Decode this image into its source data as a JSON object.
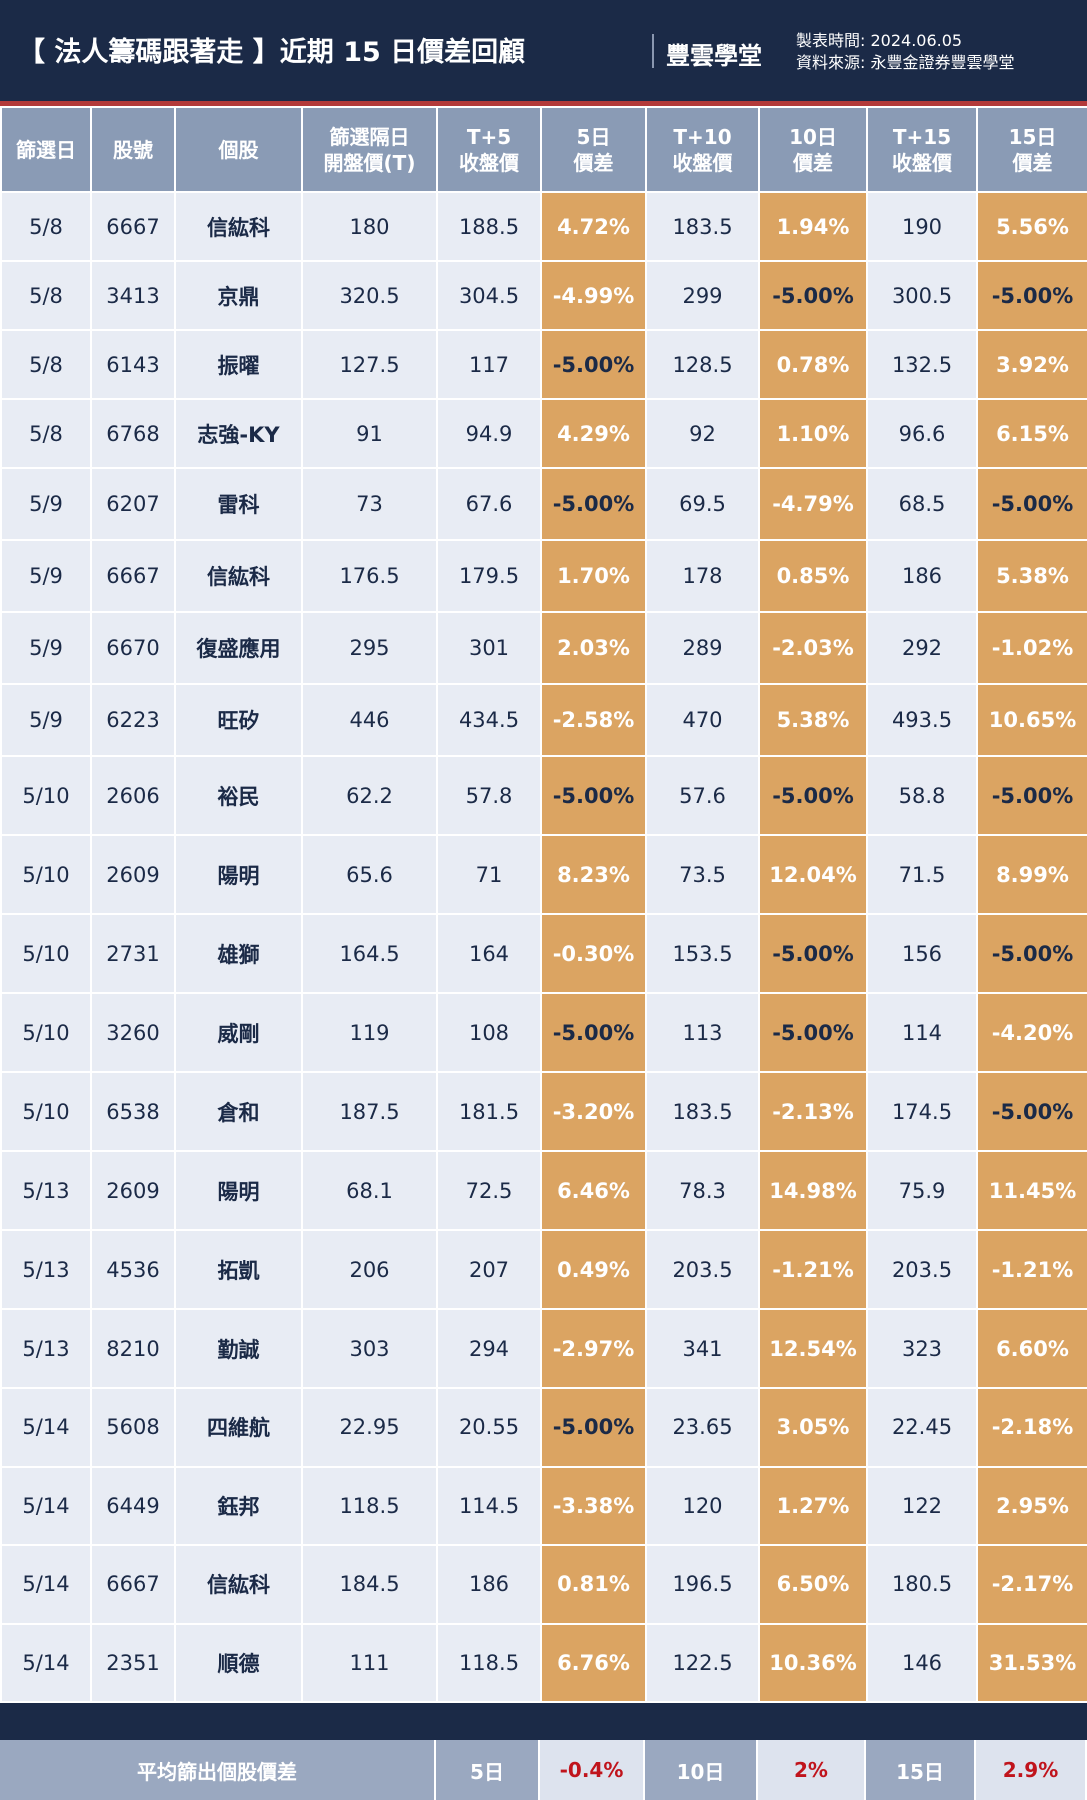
{
  "header": {
    "title": "【 法人籌碼跟著走 】近期 15 日價差回顧",
    "logo": "豐雲學堂",
    "made_time": "製表時間: 2024.06.05",
    "source": "資料來源: 永豐金證券豐雲學堂"
  },
  "table": {
    "columns": [
      "篩選日",
      "股號",
      "個股",
      "篩選隔日\n開盤價(T)",
      "T+5\n收盤價",
      "5日\n價差",
      "T+10\n收盤價",
      "10日\n價差",
      "T+15\n收盤價",
      "15日\n價差"
    ],
    "rows": [
      [
        "5/8",
        "6667",
        "信紘科",
        "180",
        "188.5",
        "4.72%",
        "183.5",
        "1.94%",
        "190",
        "5.56%"
      ],
      [
        "5/8",
        "3413",
        "京鼎",
        "320.5",
        "304.5",
        "-4.99%",
        "299",
        "-5.00%",
        "300.5",
        "-5.00%"
      ],
      [
        "5/8",
        "6143",
        "振曜",
        "127.5",
        "117",
        "-5.00%",
        "128.5",
        "0.78%",
        "132.5",
        "3.92%"
      ],
      [
        "5/8",
        "6768",
        "志強-KY",
        "91",
        "94.9",
        "4.29%",
        "92",
        "1.10%",
        "96.6",
        "6.15%"
      ],
      [
        "5/9",
        "6207",
        "雷科",
        "73",
        "67.6",
        "-5.00%",
        "69.5",
        "-4.79%",
        "68.5",
        "-5.00%"
      ],
      [
        "5/9",
        "6667",
        "信紘科",
        "176.5",
        "179.5",
        "1.70%",
        "178",
        "0.85%",
        "186",
        "5.38%"
      ],
      [
        "5/9",
        "6670",
        "復盛應用",
        "295",
        "301",
        "2.03%",
        "289",
        "-2.03%",
        "292",
        "-1.02%"
      ],
      [
        "5/9",
        "6223",
        "旺矽",
        "446",
        "434.5",
        "-2.58%",
        "470",
        "5.38%",
        "493.5",
        "10.65%"
      ],
      [
        "5/10",
        "2606",
        "裕民",
        "62.2",
        "57.8",
        "-5.00%",
        "57.6",
        "-5.00%",
        "58.8",
        "-5.00%"
      ],
      [
        "5/10",
        "2609",
        "陽明",
        "65.6",
        "71",
        "8.23%",
        "73.5",
        "12.04%",
        "71.5",
        "8.99%"
      ],
      [
        "5/10",
        "2731",
        "雄獅",
        "164.5",
        "164",
        "-0.30%",
        "153.5",
        "-5.00%",
        "156",
        "-5.00%"
      ],
      [
        "5/10",
        "3260",
        "威剛",
        "119",
        "108",
        "-5.00%",
        "113",
        "-5.00%",
        "114",
        "-4.20%"
      ],
      [
        "5/10",
        "6538",
        "倉和",
        "187.5",
        "181.5",
        "-3.20%",
        "183.5",
        "-2.13%",
        "174.5",
        "-5.00%"
      ],
      [
        "5/13",
        "2609",
        "陽明",
        "68.1",
        "72.5",
        "6.46%",
        "78.3",
        "14.98%",
        "75.9",
        "11.45%"
      ],
      [
        "5/13",
        "4536",
        "拓凱",
        "206",
        "207",
        "0.49%",
        "203.5",
        "-1.21%",
        "203.5",
        "-1.21%"
      ],
      [
        "5/13",
        "8210",
        "勤誠",
        "303",
        "294",
        "-2.97%",
        "341",
        "12.54%",
        "323",
        "6.60%"
      ],
      [
        "5/14",
        "5608",
        "四維航",
        "22.95",
        "20.55",
        "-5.00%",
        "23.65",
        "3.05%",
        "22.45",
        "-2.18%"
      ],
      [
        "5/14",
        "6449",
        "鈺邦",
        "118.5",
        "114.5",
        "-3.38%",
        "120",
        "1.27%",
        "122",
        "2.95%"
      ],
      [
        "5/14",
        "6667",
        "信紘科",
        "184.5",
        "186",
        "0.81%",
        "196.5",
        "6.50%",
        "180.5",
        "-2.17%"
      ],
      [
        "5/14",
        "2351",
        "順德",
        "111",
        "118.5",
        "6.76%",
        "122.5",
        "10.36%",
        "146",
        "31.53%"
      ]
    ]
  },
  "summary": {
    "label": "平均篩出個股價差",
    "items": [
      [
        "5日",
        "-0.4%"
      ],
      [
        "10日",
        "2%"
      ],
      [
        "15日",
        "2.9%"
      ]
    ]
  }
}
